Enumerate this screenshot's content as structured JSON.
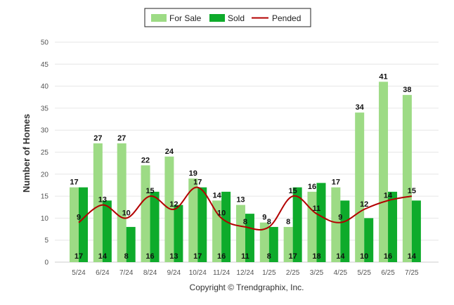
{
  "chart_data": {
    "type": "bar",
    "categories": [
      "5/24",
      "6/24",
      "7/24",
      "8/24",
      "9/24",
      "10/24",
      "11/24",
      "12/24",
      "1/25",
      "2/25",
      "3/25",
      "4/25",
      "5/25",
      "6/25",
      "7/25"
    ],
    "series": [
      {
        "name": "For Sale",
        "type": "bar",
        "color": "#9ddb85",
        "values": [
          17,
          27,
          27,
          22,
          24,
          19,
          14,
          13,
          9,
          8,
          16,
          17,
          34,
          41,
          38
        ]
      },
      {
        "name": "Sold",
        "type": "bar",
        "color": "#0eab2b",
        "values": [
          17,
          14,
          8,
          16,
          13,
          17,
          16,
          11,
          8,
          17,
          18,
          14,
          10,
          16,
          14
        ]
      },
      {
        "name": "Pended",
        "type": "line",
        "color": "#b30000",
        "values": [
          9,
          13,
          10,
          15,
          12,
          17,
          10,
          8,
          8,
          15,
          11,
          9,
          12,
          14,
          15
        ]
      }
    ],
    "ylabel": "Number of Homes",
    "xlabel": "",
    "ylim": [
      0,
      50
    ],
    "yticks": [
      0,
      5,
      10,
      15,
      20,
      25,
      30,
      35,
      40,
      45,
      50
    ],
    "grid": true,
    "legend_position": "top-center"
  },
  "footer": {
    "copyright": "Copyright © Trendgraphix, Inc."
  }
}
